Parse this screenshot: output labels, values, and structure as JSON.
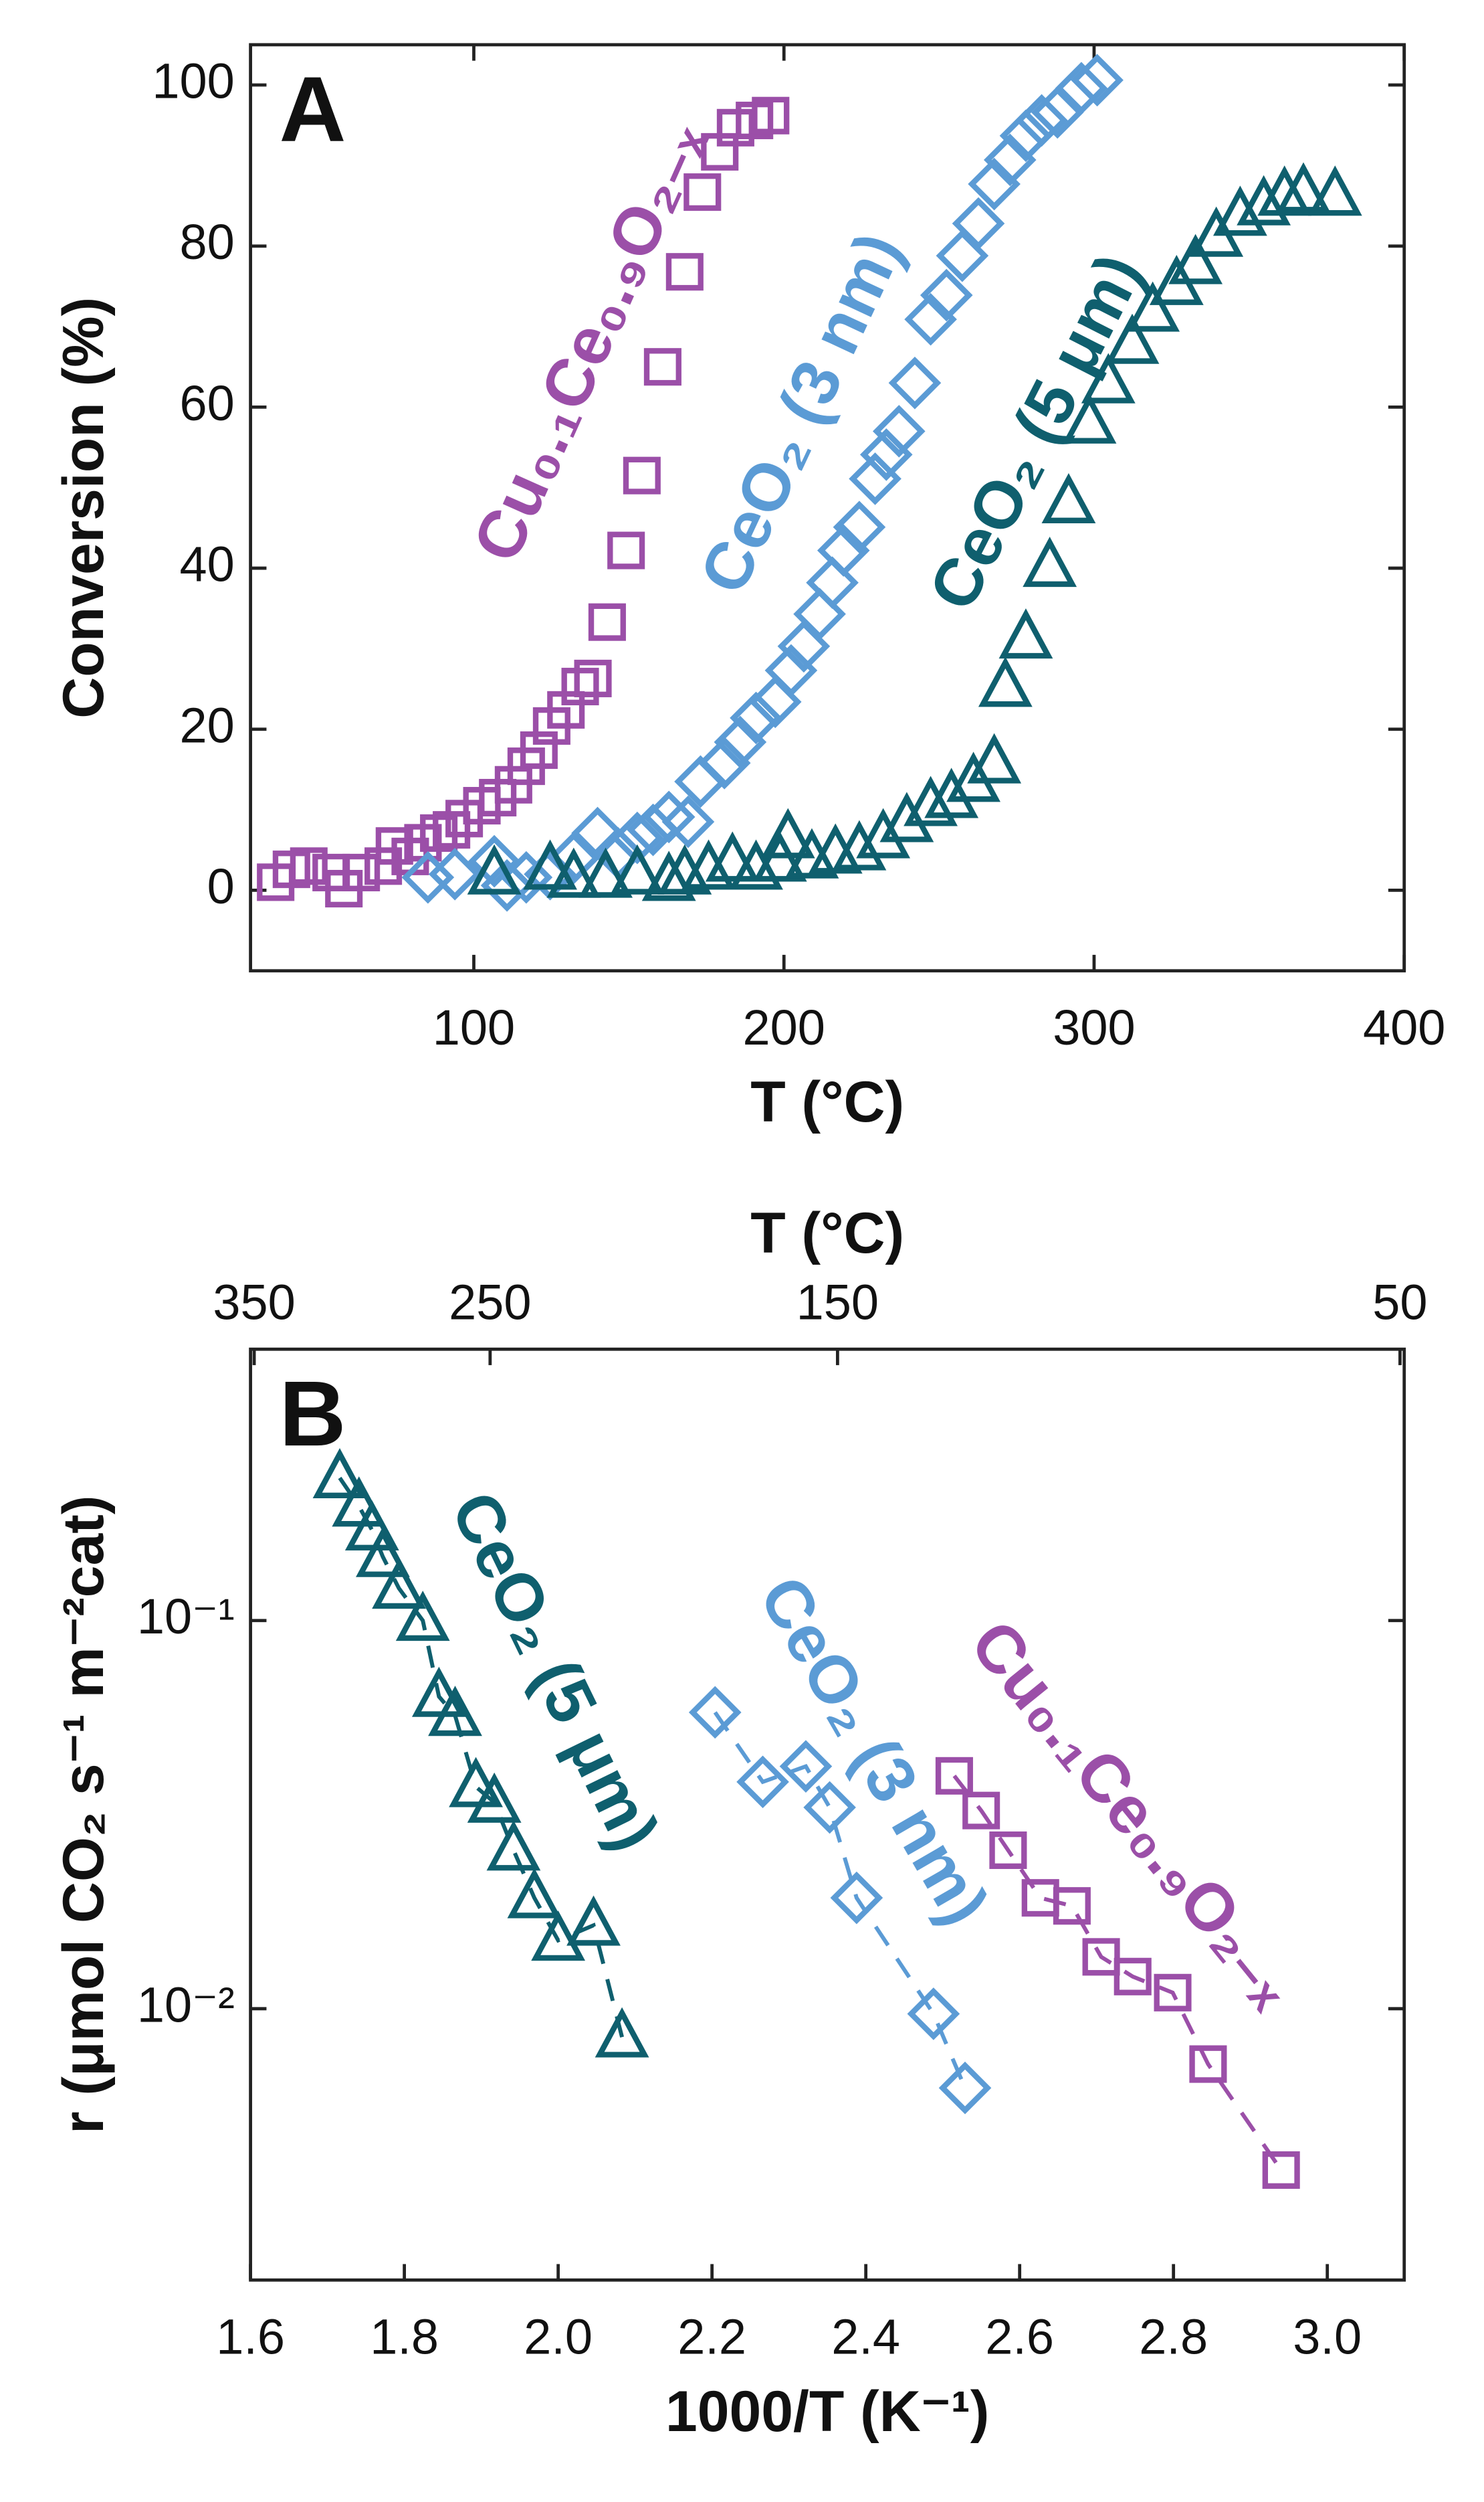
{
  "chart_data": [
    {
      "type": "scatter",
      "panel_label": "A",
      "xlabel": "T (°C)",
      "ylabel": "Conversion (%)",
      "xlim": [
        28,
        400
      ],
      "ylim": [
        -10,
        105
      ],
      "xticks": [
        100,
        200,
        300,
        400
      ],
      "yticks": [
        0,
        20,
        40,
        60,
        80,
        100
      ],
      "series": [
        {
          "name": "Cu₀.₁Ce₀.₉O₂₋ₓ",
          "color": "#9b4fa8",
          "marker": "s",
          "x": [
            36.1,
            41.2,
            46.8,
            54.0,
            58.1,
            63.7,
            70.8,
            74.4,
            79.5,
            83.6,
            88.7,
            92.8,
            96.9,
            102.6,
            107.7,
            112.8,
            116.9,
            121.0,
            125.1,
            129.7,
            134.3,
            138.4,
            143.0,
            149.1,
            154.2,
            160.9,
            168.0,
            173.7,
            179.3,
            184.4,
            190.5,
            195.7
          ],
          "values": [
            1.0,
            2.6,
            3.0,
            2.2,
            0.2,
            2.2,
            3.0,
            5.5,
            4.2,
            5.9,
            7.1,
            7.5,
            8.9,
            10.5,
            11.5,
            13.1,
            15.4,
            17.4,
            20.4,
            22.4,
            25.3,
            26.3,
            33.3,
            42.2,
            51.5,
            65.0,
            76.8,
            86.7,
            91.7,
            94.7,
            95.6,
            96.2
          ]
        },
        {
          "name": "CeO₂ (3 nm)",
          "color": "#5b9bd5",
          "marker": "D",
          "x": [
            85.2,
            93.9,
            106.6,
            110.7,
            116.9,
            124.6,
            132.2,
            139.9,
            146.5,
            152.7,
            157.8,
            162.9,
            169.1,
            173.1,
            180.8,
            185.9,
            191.0,
            197.2,
            202.3,
            206.4,
            211.5,
            215.6,
            219.2,
            224.3,
            229.4,
            233.0,
            237.1,
            242.2,
            247.3,
            252.4,
            257.5,
            262.7,
            267.8,
            272.9,
            278.0,
            283.1,
            288.2,
            295.9,
            301.0
          ],
          "values": [
            1.6,
            2.0,
            3.6,
            0.6,
            1.6,
            2.0,
            4.0,
            7.1,
            4.6,
            6.5,
            7.5,
            9.1,
            8.5,
            13.5,
            15.8,
            18.4,
            21.4,
            23.4,
            27.3,
            30.3,
            34.3,
            38.2,
            42.2,
            45.1,
            51.1,
            54.1,
            57.0,
            63.0,
            70.9,
            73.9,
            78.8,
            82.8,
            87.7,
            90.7,
            93.7,
            95.6,
            96.6,
            99.6,
            100.6
          ]
        },
        {
          "name": "CeO₂ (5 μm)",
          "color": "#0f5f6e",
          "marker": "^",
          "x": [
            106.6,
            124.6,
            132.2,
            142.5,
            152.7,
            162.9,
            168.0,
            175.7,
            183.4,
            191.0,
            198.7,
            201.3,
            209.0,
            216.6,
            224.3,
            232.0,
            239.6,
            247.3,
            254.0,
            261.1,
            267.8,
            271.4,
            278.0,
            285.7,
            291.8,
            298.5,
            304.6,
            312.3,
            318.9,
            326.6,
            332.7,
            339.4,
            347.1,
            354.7,
            361.4,
            367.5,
            377.7
          ],
          "values": [
            2.0,
            2.6,
            1.6,
            1.6,
            2.0,
            1.2,
            2.0,
            2.6,
            3.6,
            2.6,
            3.6,
            6.5,
            4.0,
            4.6,
            5.0,
            6.5,
            8.5,
            10.5,
            11.5,
            13.5,
            15.8,
            25.3,
            31.3,
            40.2,
            48.1,
            58.0,
            63.0,
            67.9,
            71.9,
            75.2,
            77.8,
            81.2,
            83.8,
            85.1,
            86.3,
            86.7,
            86.3
          ]
        }
      ]
    },
    {
      "type": "scatter",
      "panel_label": "B",
      "xlabel": "1000/T (K⁻¹)",
      "ylabel": "r (μmol CO₂ s⁻¹ m⁻²cat)",
      "x2label": "T (°C)",
      "x2ticks": [
        350,
        250,
        150,
        50
      ],
      "yscale": "log",
      "linestyle": "dashed",
      "xlim": [
        1.6,
        3.1
      ],
      "ylim": [
        0.002,
        0.5
      ],
      "xticks": [
        1.6,
        1.8,
        {
          "value": 2,
          "label": "2.0"
        },
        2.2,
        2.4,
        2.6,
        2.8,
        {
          "value": 3,
          "label": "3.0"
        }
      ],
      "yticks": [
        {
          "value": 0.01,
          "label": "10⁻²"
        },
        {
          "value": 0.1,
          "label": "10⁻¹"
        }
      ],
      "series": [
        {
          "name": "Cu₀.₁Ce₀.₉O₂₋ₓ",
          "color": "#9b4fa8",
          "marker": "s",
          "x": [
            2.515,
            2.55,
            2.585,
            2.627,
            2.668,
            2.706,
            2.747,
            2.799,
            2.845,
            2.94
          ],
          "values": [
            0.0398,
            0.0324,
            0.0256,
            0.0193,
            0.0184,
            0.0136,
            0.0121,
            0.011,
            0.0072,
            0.00384
          ]
        },
        {
          "name": "CeO₂ (3 nm)",
          "color": "#5b9bd5",
          "marker": "D",
          "x": [
            2.204,
            2.266,
            2.322,
            2.353,
            2.388,
            2.488,
            2.529
          ],
          "values": [
            0.058,
            0.0384,
            0.0421,
            0.033,
            0.0193,
            0.0097,
            0.00625
          ]
        },
        {
          "name": "CeO₂ (5 μm)",
          "color": "#0f5f6e",
          "marker": "^",
          "x": [
            1.716,
            1.741,
            1.758,
            1.772,
            1.793,
            1.824,
            1.845,
            1.866,
            1.893,
            1.917,
            1.942,
            1.969,
            2.0,
            2.046,
            2.083
          ],
          "values": [
            0.233,
            0.197,
            0.171,
            0.146,
            0.121,
            0.1,
            0.0637,
            0.0569,
            0.0373,
            0.034,
            0.0256,
            0.0193,
            0.015,
            0.0164,
            0.00845
          ]
        }
      ]
    }
  ]
}
